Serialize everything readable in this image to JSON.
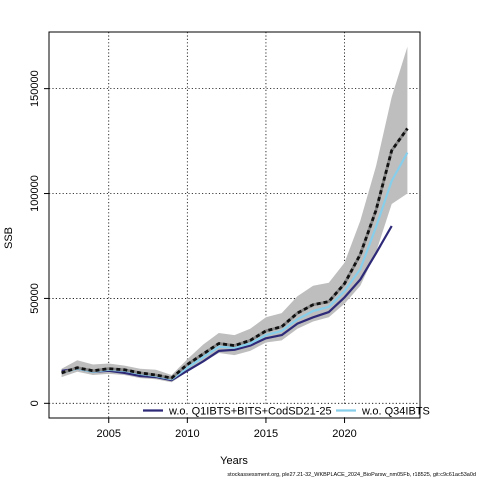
{
  "chart_data": {
    "type": "line",
    "xlabel": "Years",
    "ylabel": "SSB",
    "xlim": [
      2001.2,
      2024.8
    ],
    "ylim": [
      -7000,
      177000
    ],
    "xticks": [
      2005,
      2010,
      2015,
      2020
    ],
    "yticks": [
      0,
      50000,
      100000,
      150000
    ],
    "ytick_labels": [
      "0",
      "50000",
      "100000",
      "150000"
    ],
    "grid": true,
    "grid_style": "dotted",
    "x": [
      2002,
      2003,
      2004,
      2005,
      2006,
      2007,
      2008,
      2009,
      2010,
      2011,
      2012,
      2013,
      2014,
      2015,
      2016,
      2017,
      2018,
      2019,
      2020,
      2021,
      2022,
      2023,
      2024
    ],
    "confidence_band": {
      "lower": [
        12500,
        15000,
        13500,
        14000,
        13500,
        12000,
        11500,
        10000,
        15000,
        19500,
        24000,
        23000,
        25000,
        29000,
        30000,
        35500,
        39000,
        41000,
        47500,
        56000,
        72000,
        95000,
        100000
      ],
      "upper": [
        16500,
        20500,
        18500,
        19000,
        18000,
        16500,
        16000,
        13500,
        21000,
        28000,
        33500,
        32500,
        35500,
        41000,
        43000,
        51000,
        56000,
        57500,
        67000,
        87000,
        113000,
        146000,
        170000
      ],
      "color": "#bebebe"
    },
    "series": [
      {
        "name": "",
        "style": "dashed",
        "color": "#111111",
        "values": [
          14500,
          17000,
          15500,
          16500,
          16000,
          14500,
          13500,
          12000,
          18500,
          23500,
          28500,
          27500,
          30000,
          34500,
          36500,
          43000,
          47000,
          48500,
          57000,
          71000,
          92000,
          120500,
          131000
        ]
      },
      {
        "name": "w.o. Q1IBTS+BITS+CodSD21-25",
        "style": "solid",
        "color": "#2e2a78",
        "values": [
          15500,
          16500,
          15000,
          15500,
          14500,
          13000,
          12500,
          11000,
          15500,
          20000,
          25000,
          25500,
          27500,
          31000,
          32500,
          38000,
          41000,
          43500,
          50500,
          59000,
          71500,
          84500,
          null
        ]
      },
      {
        "name": "w.o. Q34IBTS",
        "style": "solid",
        "color": "#87ceeb",
        "values": [
          14500,
          16500,
          15000,
          16000,
          15500,
          14000,
          13000,
          11500,
          17000,
          22000,
          27000,
          26500,
          28500,
          32500,
          34500,
          40000,
          44000,
          46000,
          53500,
          64000,
          84000,
          106000,
          119500
        ]
      }
    ],
    "legend_location": "bottom"
  },
  "footer": {
    "source": "stockassessment.org, ple27.21-32_WKBPLACE_2024_BioParsw_nm05Fb, r18525, git:c9c61ac53a0d"
  }
}
